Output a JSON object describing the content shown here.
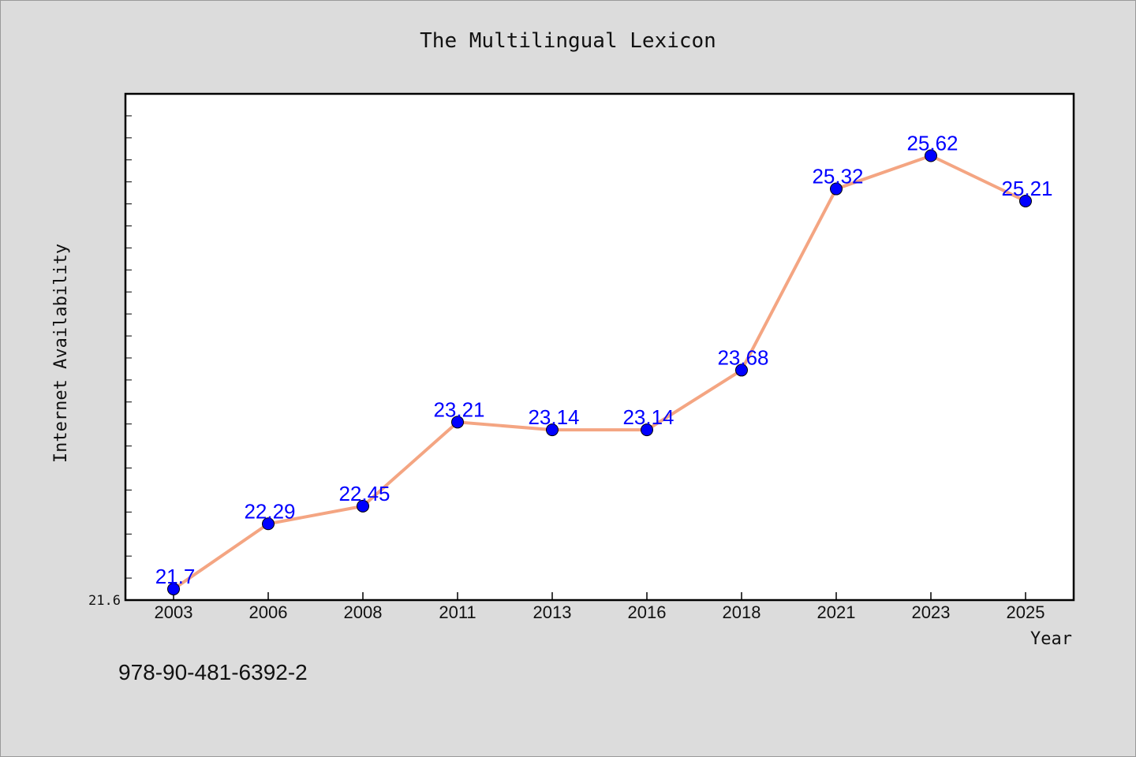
{
  "chart_data": {
    "type": "line",
    "title": "The Multilingual Lexicon",
    "xlabel": "Year",
    "ylabel": "Internet Availability",
    "categories": [
      "2003",
      "2006",
      "2008",
      "2011",
      "2013",
      "2016",
      "2018",
      "2021",
      "2023",
      "2025"
    ],
    "series": [
      {
        "values": [
          21.7,
          22.29,
          22.45,
          23.21,
          23.14,
          23.14,
          23.68,
          25.32,
          25.62,
          25.21
        ],
        "data_labels": [
          "21.7",
          "22.29",
          "22.45",
          "23.21",
          "23.14",
          "23.14",
          "23.68",
          "25.32",
          "25.62",
          "25.21"
        ],
        "line_color": "#f4a582",
        "marker_color": "#0000ff"
      }
    ],
    "ylim": [
      21.6,
      26.18
    ],
    "y_tick_labels": [
      "21.6"
    ],
    "grid": false,
    "legend": "none"
  },
  "footer": {
    "isbn": "978-90-481-6392-2"
  },
  "colors": {
    "background": "#dcdcdc",
    "plot_background": "#ffffff",
    "data_label": "#0000ff"
  }
}
